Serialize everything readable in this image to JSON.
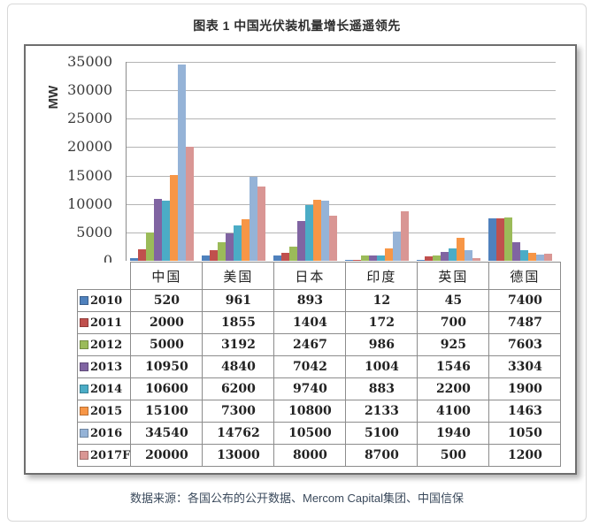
{
  "title": "图表 1 中国光伏装机量增长遥遥领先",
  "source": "数据来源：各国公布的公开数据、Mercom Capital集团、中国信保",
  "chart_data": {
    "type": "bar",
    "title": "图表 1 中国光伏装机量增长遥遥领先",
    "xlabel": "",
    "ylabel": "MW",
    "ylim": [
      0,
      35000
    ],
    "ytick_step": 5000,
    "yticks": [
      0,
      5000,
      10000,
      15000,
      20000,
      25000,
      30000,
      35000
    ],
    "grid": true,
    "legend_position": "table-left-column",
    "categories": [
      "中国",
      "美国",
      "日本",
      "印度",
      "英国",
      "德国"
    ],
    "series": [
      {
        "name": "2010",
        "color": "#4F81BD",
        "values": [
          520,
          961,
          893,
          12,
          45,
          7400
        ]
      },
      {
        "name": "2011",
        "color": "#C0504D",
        "values": [
          2000,
          1855,
          1404,
          172,
          700,
          7487
        ]
      },
      {
        "name": "2012",
        "color": "#9BBB59",
        "values": [
          5000,
          3192,
          2467,
          986,
          925,
          7603
        ]
      },
      {
        "name": "2013",
        "color": "#8064A2",
        "values": [
          10950,
          4840,
          7042,
          1004,
          1546,
          3304
        ]
      },
      {
        "name": "2014",
        "color": "#4BACC6",
        "values": [
          10600,
          6200,
          9740,
          883,
          2200,
          1900
        ]
      },
      {
        "name": "2015",
        "color": "#F79646",
        "values": [
          15100,
          7300,
          10800,
          2133,
          4100,
          1463
        ]
      },
      {
        "name": "2016",
        "color": "#95B3D7",
        "values": [
          34540,
          14762,
          10500,
          5100,
          1940,
          1050
        ]
      },
      {
        "name": "2017F",
        "color": "#D99694",
        "values": [
          20000,
          13000,
          8000,
          8700,
          500,
          1200
        ]
      }
    ]
  }
}
